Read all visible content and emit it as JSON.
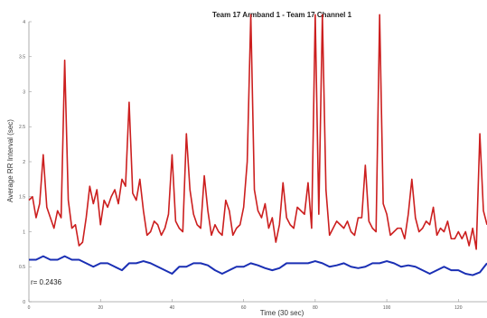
{
  "chart_data": {
    "type": "line",
    "title": "Team 17 Armband 1 - Team 17 Channel 1",
    "xlabel": "Time (30 sec)",
    "ylabel": "Average RR Interval (sec)",
    "xlim": [
      0,
      128
    ],
    "ylim": [
      0,
      4
    ],
    "xticks": [
      0,
      20,
      40,
      60,
      80,
      100,
      120
    ],
    "yticks": [
      0,
      0.5,
      1,
      1.5,
      2,
      2.5,
      3,
      3.5,
      4
    ],
    "xtick_labels": [
      "0",
      "20",
      "40",
      "60",
      "80",
      "100",
      "120"
    ],
    "ytick_labels": [
      "0",
      "0.5",
      "1",
      "1.5",
      "2",
      "2.5",
      "3",
      "3.5",
      "4"
    ],
    "grid": false,
    "annotation": "r=  0.2436",
    "series": [
      {
        "color": "#cc1f1f",
        "x": [
          0,
          1,
          2,
          3,
          4,
          5,
          6,
          7,
          8,
          9,
          10,
          11,
          12,
          13,
          14,
          15,
          16,
          17,
          18,
          19,
          20,
          21,
          22,
          23,
          24,
          25,
          26,
          27,
          28,
          29,
          30,
          31,
          32,
          33,
          34,
          35,
          36,
          37,
          38,
          39,
          40,
          41,
          42,
          43,
          44,
          45,
          46,
          47,
          48,
          49,
          50,
          51,
          52,
          53,
          54,
          55,
          56,
          57,
          58,
          59,
          60,
          61,
          62,
          63,
          64,
          65,
          66,
          67,
          68,
          69,
          70,
          71,
          72,
          73,
          74,
          75,
          76,
          77,
          78,
          79,
          80,
          81,
          82,
          83,
          84,
          85,
          86,
          87,
          88,
          89,
          90,
          91,
          92,
          93,
          94,
          95,
          96,
          97,
          98,
          99,
          100,
          101,
          102,
          103,
          104,
          105,
          106,
          107,
          108,
          109,
          110,
          111,
          112,
          113,
          114,
          115,
          116,
          117,
          118,
          119,
          120,
          121,
          122,
          123,
          124,
          125,
          126,
          127,
          128
        ],
        "values": [
          1.45,
          1.5,
          1.2,
          1.4,
          2.1,
          1.35,
          1.2,
          1.05,
          1.3,
          1.2,
          3.45,
          1.45,
          1.05,
          1.1,
          0.8,
          0.85,
          1.2,
          1.65,
          1.4,
          1.6,
          1.1,
          1.45,
          1.35,
          1.5,
          1.6,
          1.4,
          1.75,
          1.65,
          2.85,
          1.55,
          1.45,
          1.75,
          1.3,
          0.95,
          1.0,
          1.15,
          1.1,
          0.95,
          1.05,
          1.25,
          2.1,
          1.15,
          1.05,
          1.0,
          2.4,
          1.6,
          1.25,
          1.1,
          1.05,
          1.8,
          1.3,
          0.95,
          1.1,
          1.0,
          0.95,
          1.45,
          1.3,
          0.95,
          1.05,
          1.1,
          1.35,
          2.0,
          4.2,
          1.6,
          1.3,
          1.2,
          1.4,
          1.05,
          1.2,
          0.85,
          1.1,
          1.7,
          1.2,
          1.1,
          1.05,
          1.35,
          1.3,
          1.25,
          1.7,
          1.05,
          4.2,
          1.25,
          4.2,
          1.6,
          0.95,
          1.05,
          1.15,
          1.1,
          1.05,
          1.15,
          1.0,
          0.95,
          1.2,
          1.2,
          1.95,
          1.15,
          1.05,
          1.0,
          4.2,
          1.4,
          1.25,
          0.95,
          1.0,
          1.05,
          1.05,
          0.9,
          1.25,
          1.75,
          1.2,
          1.0,
          1.05,
          1.15,
          1.1,
          1.35,
          0.95,
          1.05,
          1.0,
          1.15,
          0.9,
          0.9,
          1.0,
          0.9,
          1.0,
          0.8,
          1.05,
          0.75,
          2.4,
          1.3,
          1.1
        ],
        "name": ""
      },
      {
        "color": "#1a2fb4",
        "x": [
          0,
          2,
          4,
          6,
          8,
          10,
          12,
          14,
          16,
          18,
          20,
          22,
          24,
          26,
          28,
          30,
          32,
          34,
          36,
          38,
          40,
          42,
          44,
          46,
          48,
          50,
          52,
          54,
          56,
          58,
          60,
          62,
          64,
          66,
          68,
          70,
          72,
          74,
          76,
          78,
          80,
          82,
          84,
          86,
          88,
          90,
          92,
          94,
          96,
          98,
          100,
          102,
          104,
          106,
          108,
          110,
          112,
          114,
          116,
          118,
          120,
          122,
          124,
          126,
          128
        ],
        "values": [
          0.6,
          0.6,
          0.65,
          0.6,
          0.6,
          0.65,
          0.6,
          0.6,
          0.55,
          0.5,
          0.55,
          0.55,
          0.5,
          0.45,
          0.55,
          0.55,
          0.58,
          0.55,
          0.5,
          0.45,
          0.4,
          0.5,
          0.5,
          0.55,
          0.55,
          0.52,
          0.45,
          0.4,
          0.45,
          0.5,
          0.5,
          0.55,
          0.52,
          0.48,
          0.45,
          0.48,
          0.55,
          0.55,
          0.55,
          0.55,
          0.58,
          0.55,
          0.5,
          0.52,
          0.55,
          0.5,
          0.48,
          0.5,
          0.55,
          0.55,
          0.58,
          0.55,
          0.5,
          0.52,
          0.5,
          0.45,
          0.4,
          0.45,
          0.5,
          0.45,
          0.45,
          0.4,
          0.38,
          0.42,
          0.55
        ],
        "name": ""
      }
    ]
  }
}
